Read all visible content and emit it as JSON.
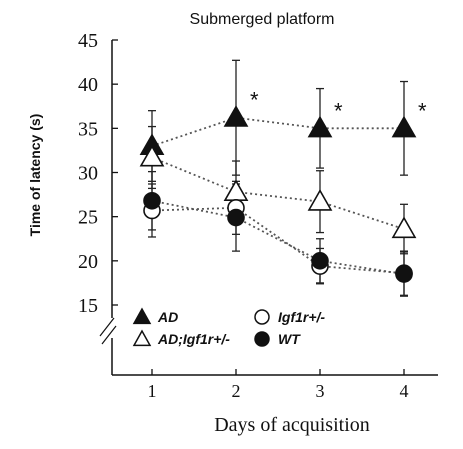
{
  "chart_data": {
    "type": "line",
    "title": "Submerged platform",
    "ylabel": "Time of latency (s)",
    "xlabel": "Days of acquisition",
    "x": [
      1,
      2,
      3,
      4
    ],
    "xticks": [
      "1",
      "2",
      "3",
      "4"
    ],
    "yticks": [
      "15",
      "20",
      "25",
      "30",
      "35",
      "40",
      "45"
    ],
    "ylim": [
      15,
      45
    ],
    "axis_break": true,
    "grid": false,
    "legend_position": "bottom-left",
    "series": [
      {
        "name": "AD",
        "marker": "triangle-filled",
        "values": [
          33.0,
          36.2,
          35.0,
          35.0
        ],
        "err": [
          4.0,
          6.5,
          4.5,
          5.3
        ],
        "significance": [
          "",
          "*",
          "*",
          "*"
        ]
      },
      {
        "name": "AD;Igf1r+/-",
        "marker": "triangle-open",
        "values": [
          31.7,
          27.8,
          26.7,
          23.6
        ],
        "err": [
          3.5,
          3.5,
          3.5,
          2.8
        ],
        "significance": [
          "",
          "",
          "",
          ""
        ]
      },
      {
        "name": "Igf1r+/-",
        "marker": "circle-open",
        "values": [
          25.7,
          26.0,
          19.4,
          18.6
        ],
        "err": [
          3.0,
          3.0,
          2.0,
          2.5
        ],
        "significance": [
          "",
          "",
          "",
          ""
        ]
      },
      {
        "name": "WT",
        "marker": "circle-filled",
        "values": [
          26.8,
          24.9,
          20.0,
          18.5
        ],
        "err": [
          3.3,
          3.8,
          2.5,
          2.5
        ],
        "significance": [
          "",
          "",
          "",
          ""
        ]
      }
    ],
    "legend_order": [
      0,
      2,
      1,
      3
    ]
  }
}
